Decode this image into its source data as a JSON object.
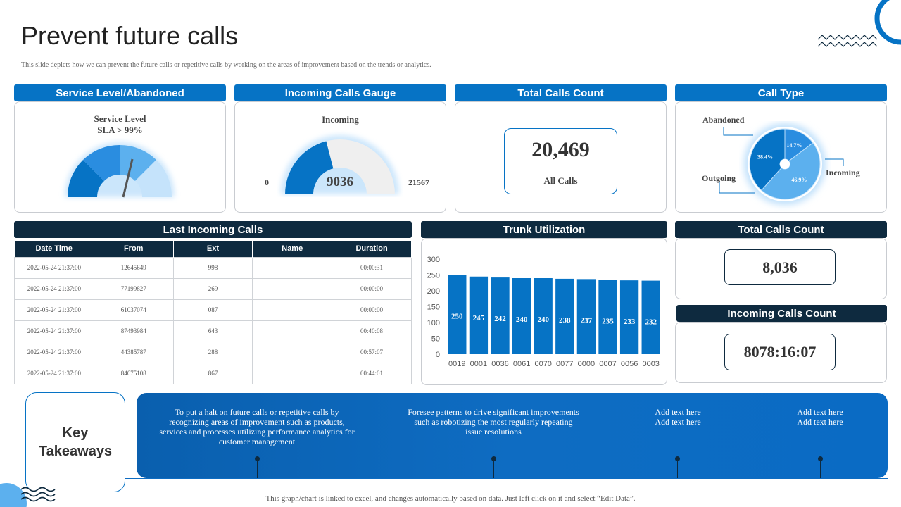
{
  "page": {
    "title": "Prevent future calls",
    "subtitle": "This slide depicts how we can prevent the future calls or repetitive calls by working on the areas of improvement based on the trends or analytics.",
    "footer": "This graph/chart is linked to excel,  and changes automatically based on data. Just left click on it and select “Edit Data”."
  },
  "service_level": {
    "header": "Service Level/Abandoned",
    "label_line1": "Service Level",
    "label_line2": "SLA > 99%"
  },
  "incoming_gauge": {
    "header": "Incoming Calls Gauge",
    "label": "Incoming",
    "value": "9036",
    "min": "0",
    "max": "21567",
    "fraction": 0.419
  },
  "total_calls": {
    "header": "Total Calls Count",
    "value": "20,469",
    "caption": "All Calls"
  },
  "call_type": {
    "header": "Call Type",
    "labels": {
      "abandoned": "Abandoned",
      "outgoing": "Outgoing",
      "incoming": "Incoming"
    },
    "slices": [
      {
        "name": "Abandoned",
        "label": "14.7%",
        "value": 14.7,
        "color": "#2a8de0"
      },
      {
        "name": "Incoming",
        "label": "46.9%",
        "value": 46.9,
        "color": "#5cb0ee"
      },
      {
        "name": "Outgoing",
        "label": "38.4%",
        "value": 38.4,
        "color": "#0673c5"
      }
    ]
  },
  "last_calls": {
    "header": "Last Incoming Calls",
    "columns": [
      "Date Time",
      "From",
      "Ext",
      "Name",
      "Duration"
    ],
    "rows": [
      [
        "2022-05-24 21:37:00",
        "12645649",
        "998",
        "",
        "00:00:31"
      ],
      [
        "2022-05-24 21:37:00",
        "77199827",
        "269",
        "",
        "00:00:00"
      ],
      [
        "2022-05-24 21:37:00",
        "61037074",
        "087",
        "",
        "00:00:00"
      ],
      [
        "2022-05-24 21:37:00",
        "87493984",
        "643",
        "",
        "00:40:08"
      ],
      [
        "2022-05-24 21:37:00",
        "44385787",
        "288",
        "",
        "00:57:07"
      ],
      [
        "2022-05-24 21:37:00",
        "84675108",
        "867",
        "",
        "00:44:01"
      ]
    ]
  },
  "trunk": {
    "header": "Trunk Utilization"
  },
  "chart_data": {
    "type": "bar",
    "title": "Trunk Utilization",
    "categories": [
      "0019",
      "0001",
      "0036",
      "0061",
      "0070",
      "0077",
      "0000",
      "0007",
      "0056",
      "0003"
    ],
    "values": [
      250,
      245,
      242,
      240,
      240,
      238,
      237,
      235,
      233,
      232
    ],
    "ylim": [
      0,
      300
    ],
    "yticks": [
      0,
      50,
      100,
      150,
      200,
      250,
      300
    ],
    "bar_color": "#0673c5",
    "xlabel": "",
    "ylabel": ""
  },
  "total_calls_2": {
    "header": "Total Calls Count",
    "value": "8,036"
  },
  "incoming_count": {
    "header": "Incoming Calls Count",
    "value": "8078:16:07"
  },
  "takeaways": {
    "title_line1": "Key",
    "title_line2": "Takeaways",
    "items": [
      {
        "lines": [
          "To put a halt on future calls or repetitive calls by",
          "recognizing  areas of improvement such as products,",
          "services and processes utilizing performance analytics for",
          "customer management"
        ]
      },
      {
        "lines": [
          "Foresee patterns to drive significant  improvements",
          "such as  robotizing the most regularly  repeating",
          "issue resolutions"
        ]
      },
      {
        "lines": [
          "Add text here",
          "Add text here"
        ]
      },
      {
        "lines": [
          "Add text here",
          "Add text here"
        ]
      }
    ]
  },
  "colors": {
    "primary": "#0673c5",
    "navy": "#0e2a3f",
    "light": "#5cb0ee"
  }
}
